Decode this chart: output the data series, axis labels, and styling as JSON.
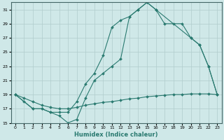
{
  "xlabel": "Humidex (Indice chaleur)",
  "background_color": "#cfe8e8",
  "grid_color": "#b0cccc",
  "line_color": "#2a7a70",
  "xlim": [
    -0.5,
    23.5
  ],
  "ylim": [
    15,
    32
  ],
  "xticks": [
    0,
    1,
    2,
    3,
    4,
    5,
    6,
    7,
    8,
    9,
    10,
    11,
    12,
    13,
    14,
    15,
    16,
    17,
    18,
    19,
    20,
    21,
    22,
    23
  ],
  "yticks": [
    15,
    17,
    19,
    21,
    23,
    25,
    27,
    29,
    31
  ],
  "line1_x": [
    0,
    1,
    2,
    3,
    4,
    5,
    6,
    7,
    8,
    9,
    10,
    11,
    12,
    13,
    14,
    15,
    16,
    17,
    18,
    19,
    20,
    21,
    22,
    23
  ],
  "line1_y": [
    19,
    18,
    17,
    17,
    16.5,
    16,
    15,
    15.5,
    18.5,
    21,
    22,
    23,
    24,
    30,
    31,
    32,
    31,
    29,
    29,
    29,
    27,
    26,
    23,
    19
  ],
  "line2_x": [
    0,
    2,
    3,
    4,
    5,
    6,
    7,
    8,
    9,
    10,
    11,
    12,
    13,
    14,
    15,
    16,
    20,
    21,
    22,
    23
  ],
  "line2_y": [
    19,
    17,
    17,
    16.5,
    16.5,
    16.5,
    18,
    20.5,
    22,
    24.5,
    28.5,
    29.5,
    30,
    31,
    32,
    31,
    27,
    26,
    23,
    19
  ],
  "line3_x": [
    0,
    1,
    2,
    3,
    4,
    5,
    6,
    7,
    8,
    9,
    10,
    11,
    12,
    13,
    14,
    15,
    16,
    17,
    18,
    19,
    20,
    21,
    22,
    23
  ],
  "line3_y": [
    19,
    18.5,
    18,
    17.5,
    17.2,
    17,
    17,
    17.2,
    17.5,
    17.7,
    17.9,
    18,
    18.2,
    18.4,
    18.5,
    18.7,
    18.8,
    18.9,
    19,
    19,
    19.1,
    19.1,
    19.1,
    19
  ]
}
